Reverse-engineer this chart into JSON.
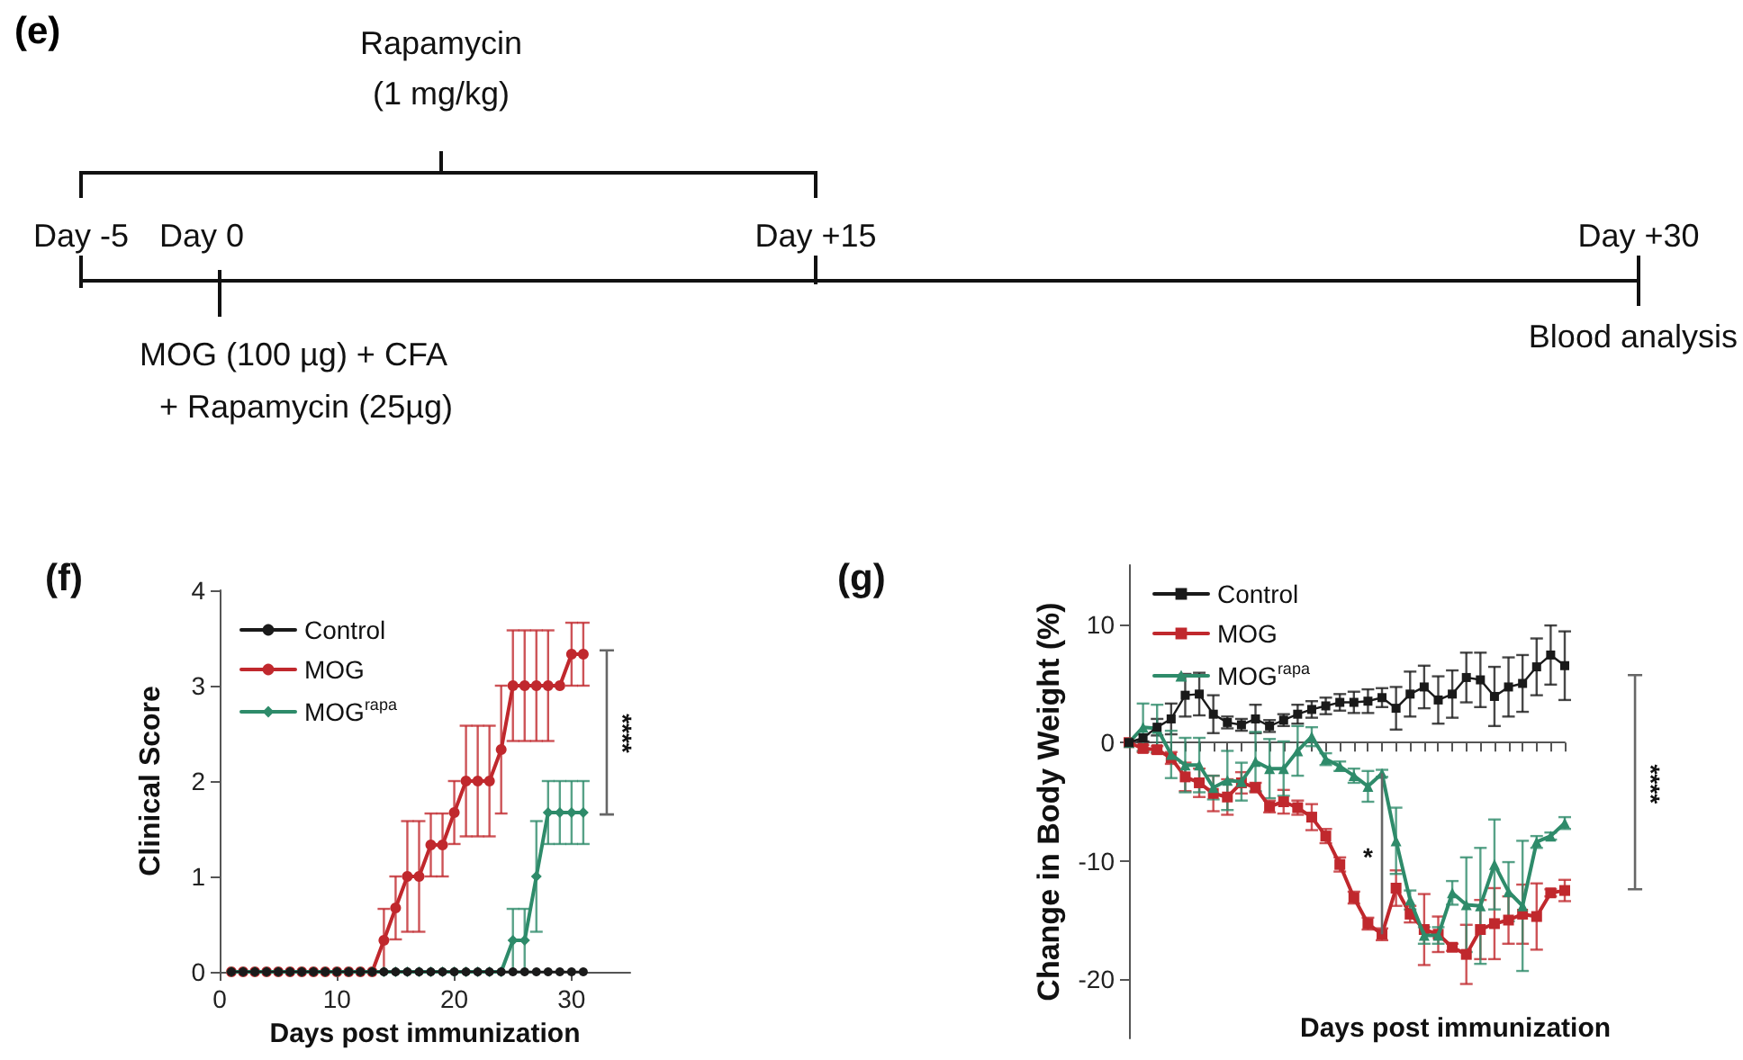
{
  "chart_data": [
    {
      "type": "other",
      "title": "(e)",
      "annotations": [
        "Rapamycin",
        "(1 mg/kg)",
        "Day -5",
        "Day 0",
        "Day +15",
        "Day +30",
        "MOG (100 µg) + CFA",
        "+ Rapamycin (25µg)",
        "Blood analysis"
      ]
    },
    {
      "type": "line",
      "title": "(f)",
      "xlabel": "Days post immunization",
      "ylabel": "Clinical Score",
      "x": [
        1,
        2,
        3,
        4,
        5,
        6,
        7,
        8,
        9,
        10,
        11,
        12,
        13,
        14,
        15,
        16,
        17,
        18,
        19,
        20,
        21,
        22,
        23,
        24,
        25,
        26,
        27,
        28,
        29,
        30,
        31
      ],
      "xlim": [
        0,
        35
      ],
      "xticks": [
        0,
        10,
        20,
        30
      ],
      "ylim": [
        0,
        4
      ],
      "yticks": [
        0,
        1,
        2,
        3,
        4
      ],
      "legend": "top left",
      "annotations": [
        "****"
      ],
      "series": [
        {
          "name": "Control",
          "color": "#1a1a1a",
          "marker": "circle",
          "values": [
            0,
            0,
            0,
            0,
            0,
            0,
            0,
            0,
            0,
            0,
            0,
            0,
            0,
            0,
            0,
            0,
            0,
            0,
            0,
            0,
            0,
            0,
            0,
            0,
            0,
            0,
            0,
            0,
            0,
            0,
            0
          ]
        },
        {
          "name": "MOG",
          "color": "#c0282d",
          "marker": "circle",
          "values": [
            0,
            0,
            0,
            0,
            0,
            0,
            0,
            0,
            0,
            0,
            0,
            0,
            0,
            0.33,
            0.67,
            1,
            1,
            1.33,
            1.33,
            1.67,
            2,
            2,
            2,
            2.33,
            3,
            3,
            3,
            3,
            3,
            3.33,
            3.33
          ],
          "errors": [
            null,
            null,
            null,
            null,
            null,
            null,
            null,
            null,
            null,
            null,
            null,
            null,
            null,
            0.33,
            0.33,
            0.58,
            0.58,
            0.33,
            0.33,
            0.33,
            0.58,
            0.58,
            0.58,
            0.67,
            0.58,
            0.58,
            0.58,
            0.58,
            null,
            0.33,
            0.33
          ]
        },
        {
          "name": "MOG$^{rapa}$",
          "color": "#2e8b6a",
          "marker": "diamond",
          "values": [
            0,
            0,
            0,
            0,
            0,
            0,
            0,
            0,
            0,
            0,
            0,
            0,
            0,
            0,
            0,
            0,
            0,
            0,
            0,
            0,
            0,
            0,
            0,
            0,
            0.33,
            0.33,
            1,
            1.67,
            1.67,
            1.67,
            1.67
          ],
          "errors": [
            null,
            null,
            null,
            null,
            null,
            null,
            null,
            null,
            null,
            null,
            null,
            null,
            null,
            null,
            null,
            null,
            null,
            null,
            null,
            null,
            null,
            null,
            null,
            null,
            0.33,
            0.33,
            0.58,
            0.33,
            0.33,
            0.33,
            0.33
          ]
        }
      ]
    },
    {
      "type": "line",
      "title": "(g)",
      "xlabel": "Days post immunization",
      "ylabel": "Change in Body Weight (%)",
      "categories": [
        null,
        null,
        null,
        null,
        null,
        null,
        null,
        null,
        null,
        null,
        null,
        null,
        null,
        null,
        null,
        null,
        null,
        null,
        null,
        null,
        null,
        null,
        null,
        null,
        null,
        null,
        null,
        null,
        null,
        null,
        null,
        null
      ],
      "ylim": [
        -25,
        15
      ],
      "yticks": [
        -20,
        -10,
        0,
        10
      ],
      "tick_labels": "y",
      "legend": "top left",
      "annotations": [
        "*",
        "****"
      ],
      "series": [
        {
          "name": "Control",
          "color": "#1a1a1a",
          "marker": "square",
          "values": [
            0,
            0.4,
            1.3,
            2.0,
            4.0,
            4.1,
            2.4,
            1.7,
            1.5,
            2.0,
            1.4,
            1.9,
            2.4,
            2.8,
            3.1,
            3.4,
            3.4,
            3.5,
            3.8,
            2.9,
            4.1,
            4.7,
            3.6,
            4.1,
            5.5,
            5.3,
            3.9,
            4.7,
            5.0,
            6.4,
            7.4,
            6.5
          ],
          "errors": [
            null,
            0.3,
            0.7,
            1.3,
            1.8,
            1.8,
            1.6,
            0.5,
            0.5,
            1.2,
            0.5,
            0.5,
            0.8,
            0.7,
            0.7,
            0.7,
            0.9,
            1.0,
            0.8,
            1.8,
            1.9,
            1.8,
            2.0,
            2.0,
            2.1,
            2.3,
            2.5,
            2.5,
            2.4,
            2.4,
            2.5,
            2.9
          ]
        },
        {
          "name": "MOG",
          "color": "#c0282d",
          "marker": "square",
          "values": [
            0,
            -0.5,
            -0.6,
            -1.3,
            -2.9,
            -3.4,
            -4.3,
            -4.6,
            -3.4,
            -3.8,
            -5.4,
            -5.0,
            -5.5,
            -6.3,
            -7.9,
            -10.3,
            -13.1,
            -15.3,
            -16.2,
            -12.3,
            -14.5,
            -15.8,
            -16.2,
            -17.3,
            -17.9,
            -15.8,
            -15.3,
            -15.0,
            -14.5,
            -14.7,
            -12.7,
            -12.5
          ],
          "errors": [
            null,
            0.3,
            0.3,
            0.5,
            1.2,
            1.2,
            1.5,
            1.5,
            0.9,
            0.4,
            0.5,
            1.0,
            0.6,
            1.1,
            0.6,
            0.6,
            0.5,
            0.5,
            0.5,
            1.5,
            0.7,
            3.0,
            1.5,
            0.3,
            2.5,
            2.5,
            3.0,
            2.0,
            2.5,
            2.8,
            0.3,
            0.9
          ]
        },
        {
          "name": "MOG$^{rapa}$",
          "color": "#2e8b6a",
          "marker": "triangle",
          "values": [
            0,
            1.3,
            1.2,
            -1.0,
            -1.9,
            -1.9,
            -3.8,
            -3.2,
            -3.3,
            -1.6,
            -2.2,
            -2.2,
            -0.7,
            0.5,
            -1.4,
            -2.0,
            -2.8,
            -3.7,
            -2.6,
            -8.3,
            -13.3,
            -16.3,
            -16.3,
            -12.7,
            -13.7,
            -13.8,
            -10.3,
            -12.6,
            -13.8,
            -8.4,
            -7.9,
            -6.8
          ],
          "errors": [
            null,
            2.0,
            2.0,
            2.0,
            2.3,
            2.3,
            1.0,
            2.5,
            1.6,
            2.5,
            2.5,
            2.3,
            2.1,
            0.8,
            0.5,
            0.4,
            0.6,
            1.3,
            0.3,
            2.8,
            0.8,
            0.7,
            0.7,
            1.0,
            4.0,
            4.9,
            3.8,
            2.5,
            5.5,
            0.5,
            0.3,
            0.5
          ]
        }
      ]
    }
  ]
}
